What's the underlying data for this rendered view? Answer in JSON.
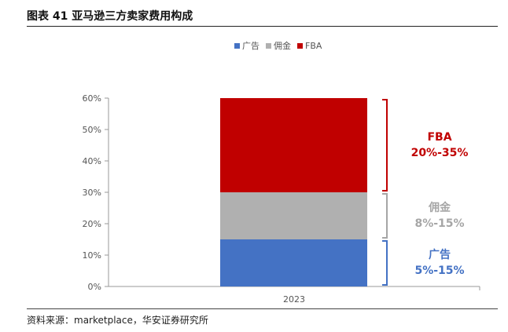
{
  "figure": {
    "title": "图表 41  亚马逊三方卖家费用构成",
    "source": "资料来源：marketplace，华安证券研究所"
  },
  "chart_data": {
    "type": "bar",
    "stacked": true,
    "categories": [
      "2023"
    ],
    "series": [
      {
        "name": "广告",
        "values": [
          15
        ],
        "color": "#4472C4"
      },
      {
        "name": "佣金",
        "values": [
          15
        ],
        "color": "#B0B0B0"
      },
      {
        "name": "FBA",
        "values": [
          30
        ],
        "color": "#C00000"
      }
    ],
    "ylim": [
      0,
      60
    ],
    "yticks": [
      "0%",
      "10%",
      "20%",
      "30%",
      "40%",
      "50%",
      "60%"
    ],
    "legend_position": "top",
    "grid": false,
    "annotations": [
      {
        "series": "FBA",
        "label": "FBA",
        "range": "20%-35%",
        "color": "#C00000"
      },
      {
        "series": "佣金",
        "label": "佣金",
        "range": "8%-15%",
        "color": "#A6A6A6"
      },
      {
        "series": "广告",
        "label": "广告",
        "range": "5%-15%",
        "color": "#4472C4"
      }
    ]
  }
}
